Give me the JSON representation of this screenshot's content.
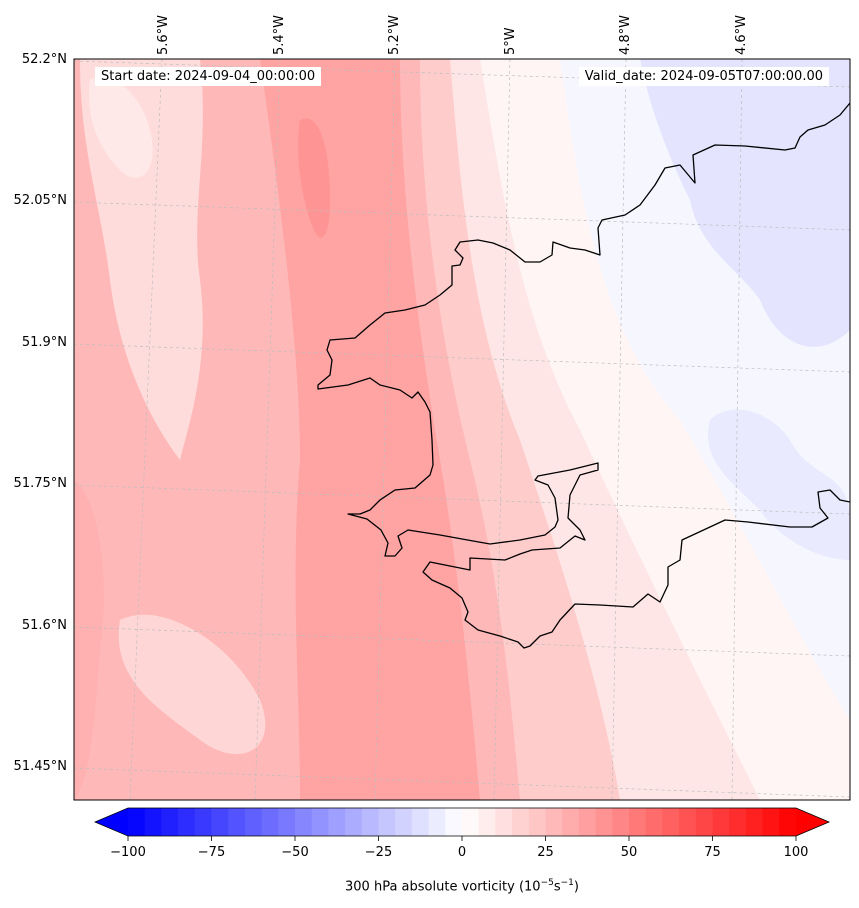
{
  "map": {
    "start_date": "Start date: 2024-09-04_00:00:00",
    "valid_date": "Valid_date: 2024-09-05T07:00:00.00",
    "lon_ticks": [
      "5.6°W",
      "5.4°W",
      "5.2°W",
      "5°W",
      "4.8°W",
      "4.6°W"
    ],
    "lat_ticks": [
      "52.2°N",
      "52.05°N",
      "51.9°N",
      "51.75°N",
      "51.6°N",
      "51.45°N"
    ],
    "field_colors": {
      "strong_positive": "#ff9a9a",
      "moderate_positive": "#ffbcbc",
      "weak_positive": "#ffdada",
      "near_zero": "#fff6f6",
      "weak_negative": "#f3f3ff",
      "negative": "#e2e2ff"
    },
    "coastline_color": "#000000"
  },
  "colorbar": {
    "min": -100,
    "max": 100,
    "ticks": [
      "−100",
      "−75",
      "−50",
      "−25",
      "0",
      "25",
      "50",
      "75",
      "100"
    ],
    "label": "300 hPa absolute vorticity (10",
    "label_exp1": "−5",
    "label_mid": "s",
    "label_exp2": "−1",
    "label_end": ")",
    "colormap": "bwr",
    "extend": "both"
  }
}
